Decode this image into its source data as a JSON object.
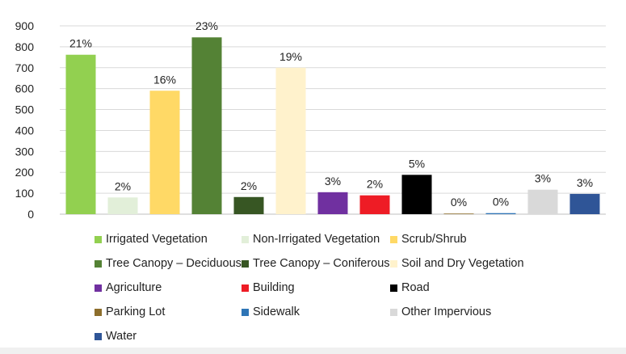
{
  "chart_data": {
    "type": "bar",
    "ylim": [
      0,
      900
    ],
    "yticks": [
      0,
      100,
      200,
      300,
      400,
      500,
      600,
      700,
      800,
      900
    ],
    "grid": true,
    "legend_placement": "bottom",
    "categories": [
      "Irrigated Vegetation",
      "Non-Irrigated Vegetation",
      "Scrub/Shrub",
      "Tree Canopy – Deciduous",
      "Tree Canopy – Coniferous",
      "Soil and Dry Vegetation",
      "Agriculture",
      "Building",
      "Road",
      "Parking Lot",
      "Sidewalk",
      "Other Impervious",
      "Water"
    ],
    "values": [
      762,
      80,
      590,
      845,
      82,
      700,
      105,
      90,
      188,
      3,
      5,
      117,
      97
    ],
    "data_labels": [
      "21%",
      "2%",
      "16%",
      "23%",
      "2%",
      "19%",
      "3%",
      "2%",
      "5%",
      "0%",
      "0%",
      "3%",
      "3%"
    ],
    "colors": [
      "#92d050",
      "#e2efd9",
      "#ffd966",
      "#548235",
      "#375623",
      "#fff2cc",
      "#7030a0",
      "#ee1c25",
      "#000000",
      "#8d6e2c",
      "#2e75b6",
      "#d9d9d9",
      "#2f5597"
    ]
  }
}
